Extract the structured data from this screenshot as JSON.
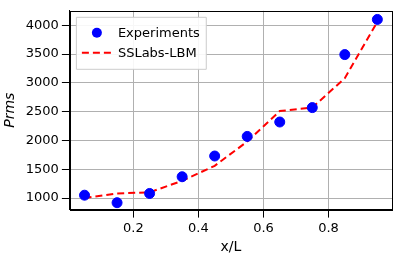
{
  "chart_data": {
    "type": "scatter",
    "x_label": "x/L",
    "y_label": "Prms",
    "x": [
      0.05,
      0.15,
      0.25,
      0.35,
      0.45,
      0.55,
      0.65,
      0.75,
      0.85,
      0.95
    ],
    "series": [
      {
        "name": "Experiments",
        "type": "scatter",
        "color": "#0000ff",
        "marker": "circle",
        "values": [
          1050,
          920,
          1080,
          1370,
          1730,
          2070,
          2320,
          2570,
          3490,
          4100
        ]
      },
      {
        "name": "SSLabs-LBM",
        "type": "line",
        "color": "#ff0000",
        "line_style": "dashed",
        "values": [
          1000,
          1080,
          1100,
          1300,
          1560,
          1980,
          2510,
          2570,
          3080,
          4060
        ]
      }
    ],
    "xlim": [
      0.005,
      0.995
    ],
    "xticks": [
      0.2,
      0.4,
      0.6,
      0.8
    ],
    "ylim": [
      800,
      4250
    ],
    "yticks": [
      1000,
      1500,
      2000,
      2500,
      3000,
      3500,
      4000
    ],
    "grid": true,
    "legend": "upper left"
  }
}
